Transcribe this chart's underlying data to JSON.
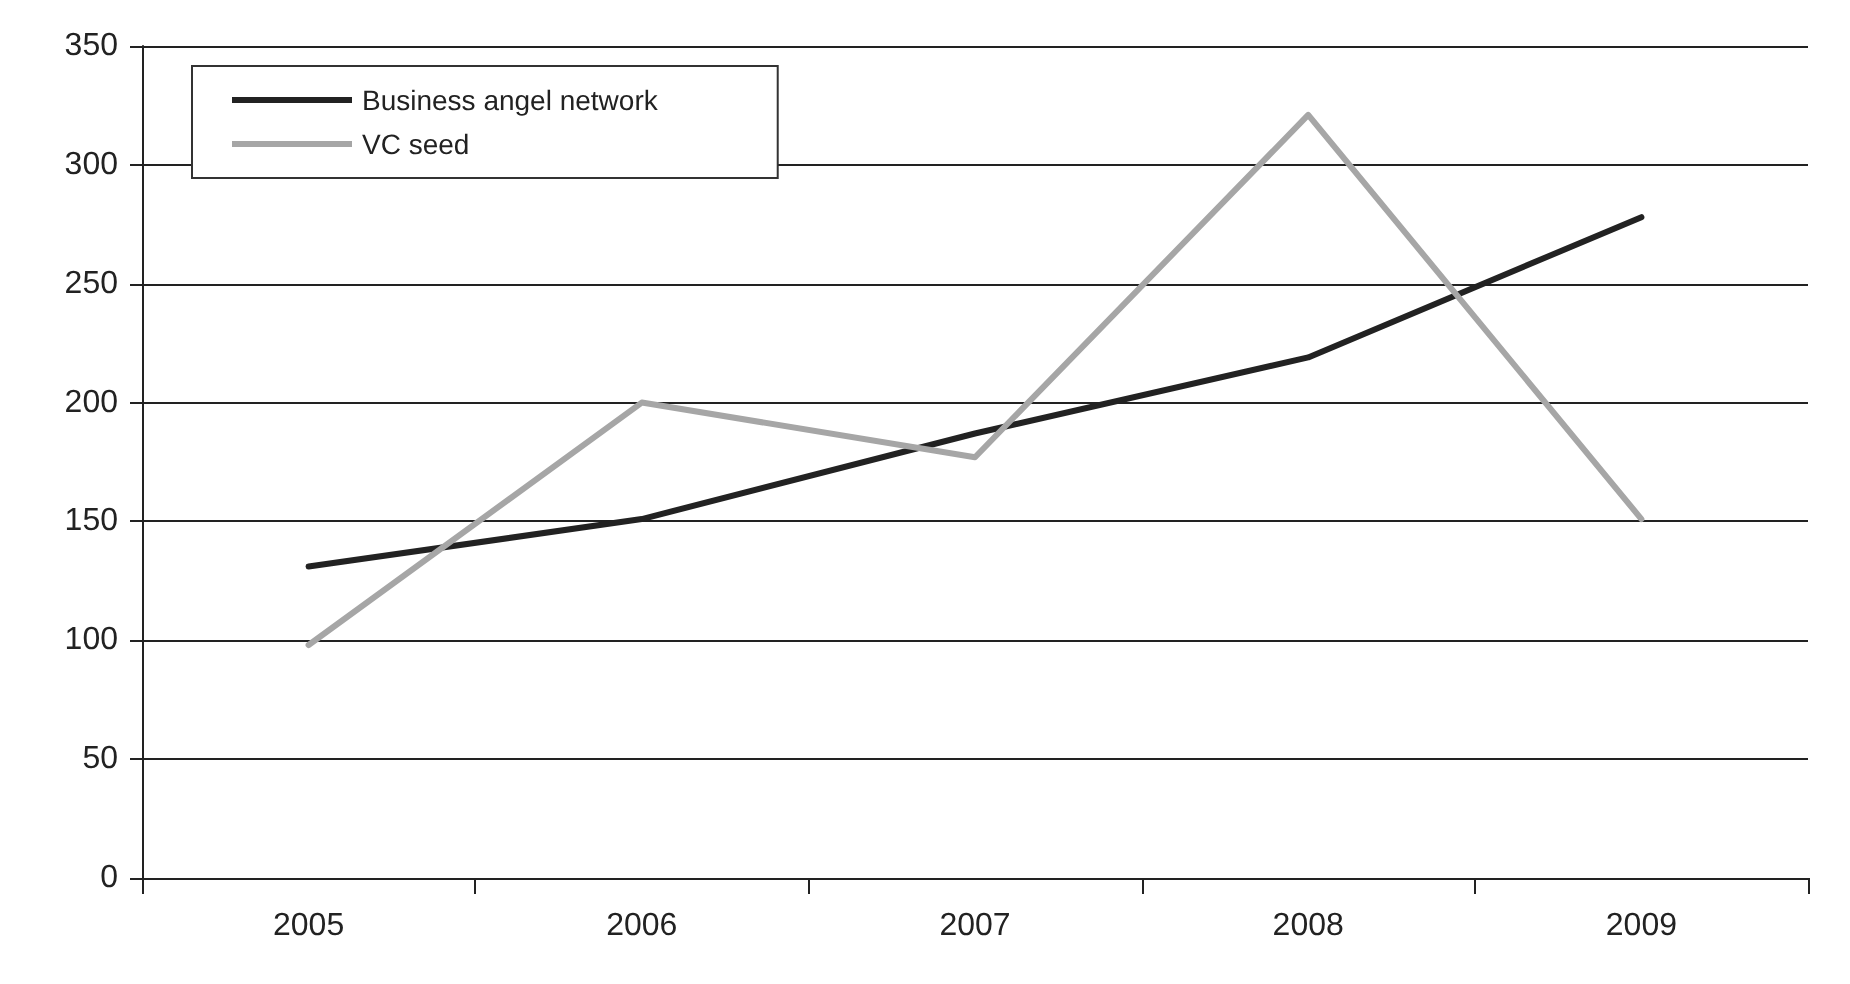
{
  "chart_data": {
    "type": "line",
    "categories": [
      "2005",
      "2006",
      "2007",
      "2008",
      "2009"
    ],
    "series": [
      {
        "name": "Business angel network",
        "color": "#222222",
        "values": [
          131,
          151,
          187,
          219,
          278
        ]
      },
      {
        "name": "VC seed",
        "color": "#a6a6a6",
        "values": [
          98,
          200,
          177,
          321,
          151
        ]
      }
    ],
    "ylim": [
      0,
      350
    ],
    "yticks": [
      0,
      50,
      100,
      150,
      200,
      250,
      300,
      350
    ],
    "grid": "y",
    "legend": "top left",
    "marker": "none",
    "line_style": "solid"
  }
}
